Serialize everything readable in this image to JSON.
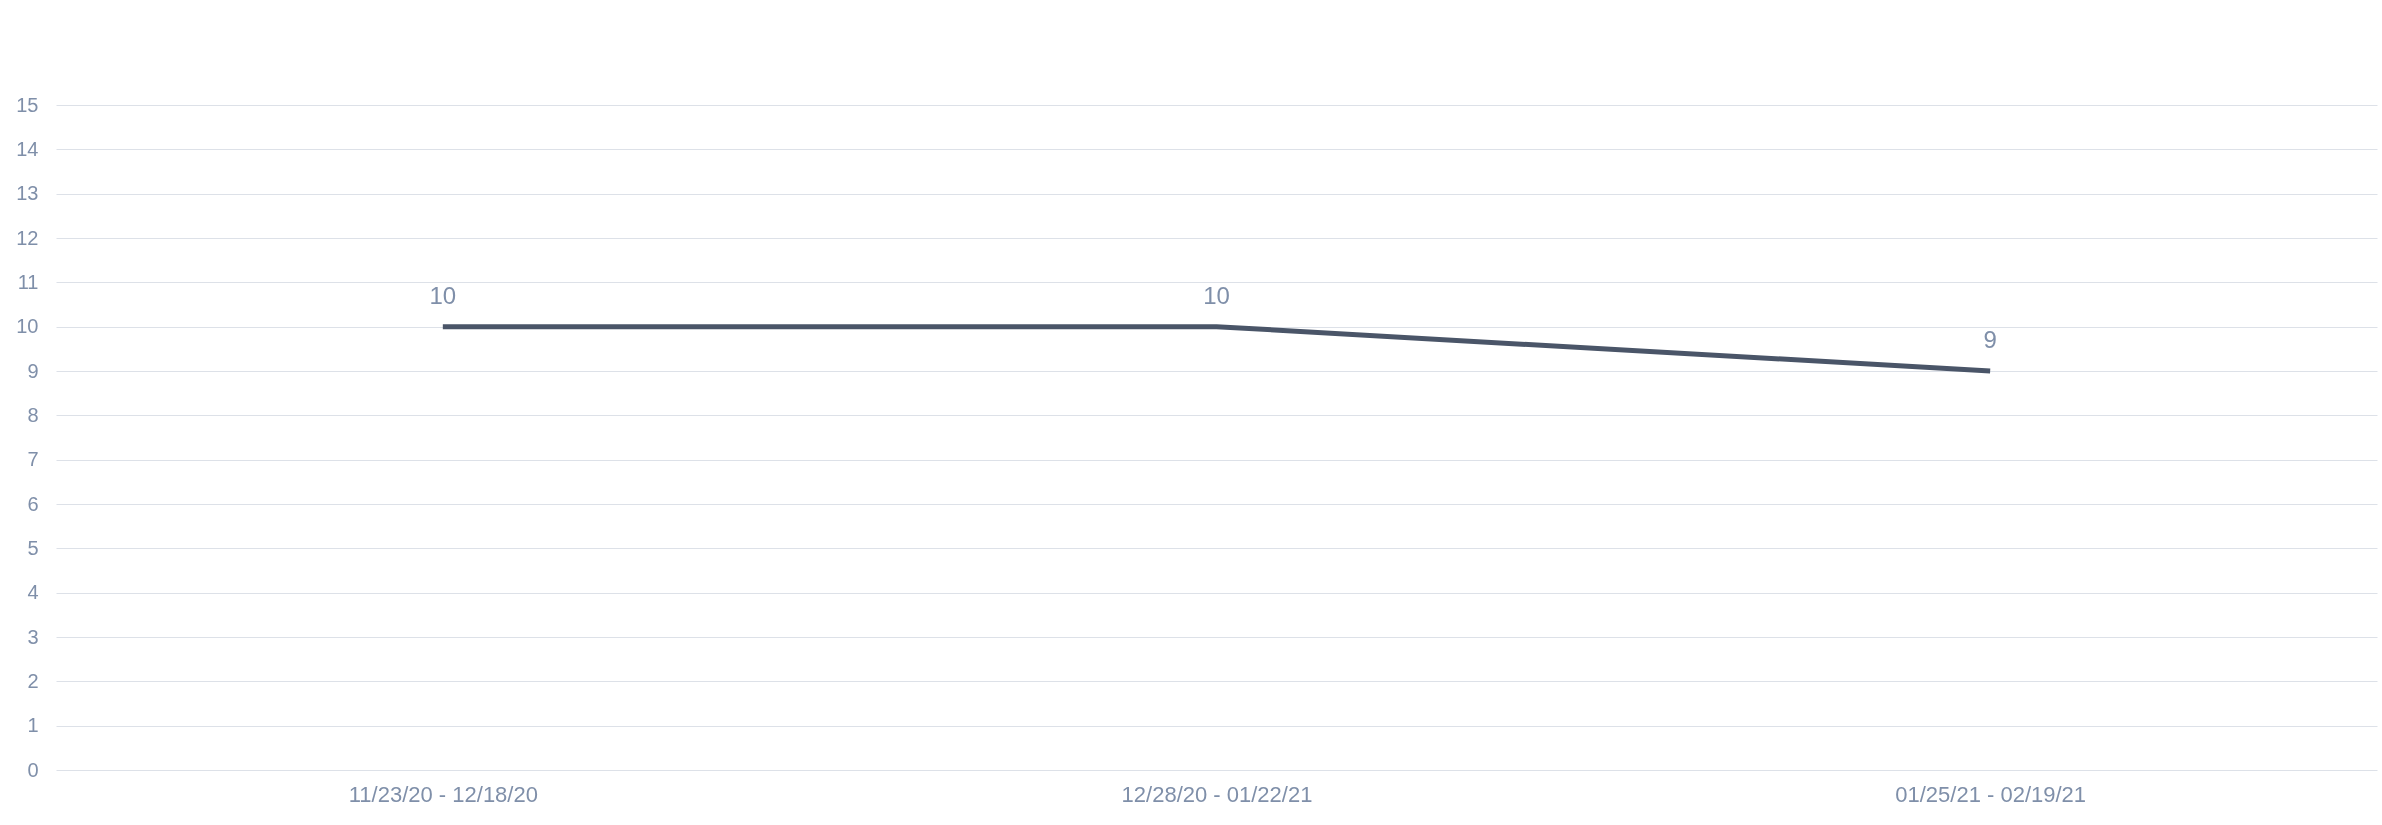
{
  "chart_data": {
    "type": "line",
    "categories": [
      "11/23/20 - 12/18/20",
      "12/28/20 - 01/22/21",
      "01/25/21 - 02/19/21"
    ],
    "series": [
      {
        "color": "#4a5568",
        "values": [
          10,
          10,
          9
        ]
      }
    ],
    "ylim": [
      0,
      15
    ],
    "yticks": [
      0,
      1,
      2,
      3,
      4,
      5,
      6,
      7,
      8,
      9,
      10,
      11,
      12,
      13,
      14,
      15
    ],
    "grid": "y",
    "data_labels": true,
    "marker": "none",
    "line_style": "solid",
    "legend": false
  }
}
